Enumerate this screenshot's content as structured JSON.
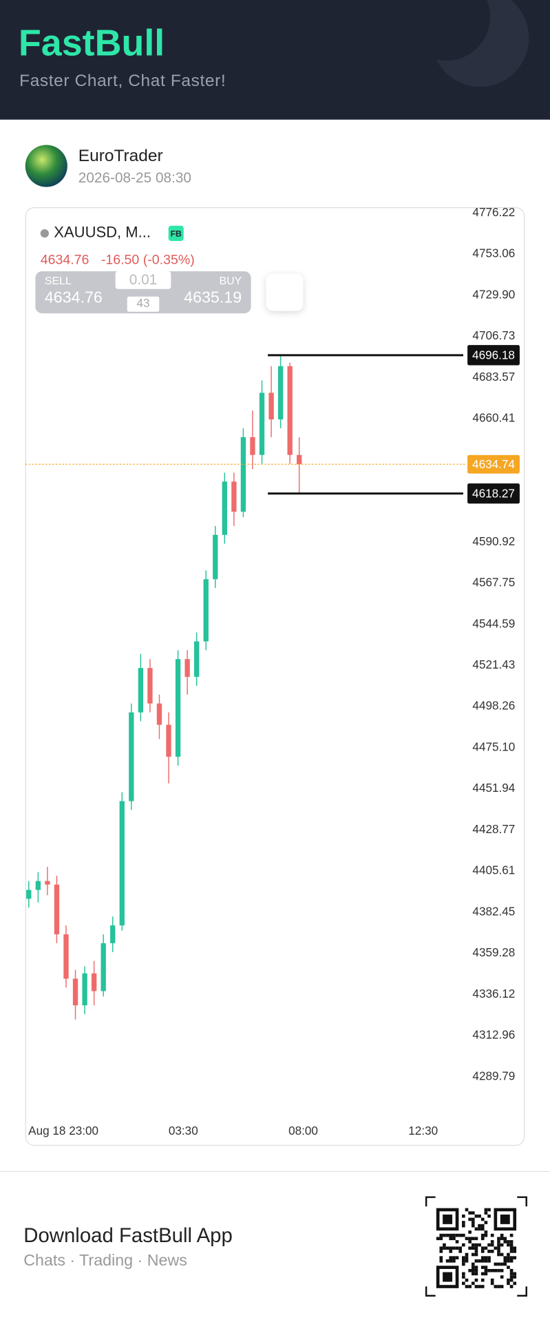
{
  "header": {
    "title": "FastBull",
    "subtitle": "Faster Chart, Chat Faster!"
  },
  "post": {
    "author": "EuroTrader",
    "date": "2026-08-25 08:30"
  },
  "chart_data": {
    "type": "candlestick",
    "symbol": "XAUUSD, M...",
    "badge": "FB",
    "price": 4634.76,
    "change": "-16.50 (-0.35%)",
    "trade": {
      "sell_label": "SELL",
      "sell": 4634.76,
      "buy_label": "BUY",
      "buy": 4635.19,
      "lot": 0.01,
      "spread": 43
    },
    "x": [
      21.7,
      22.05,
      22.4,
      22.75,
      23.1,
      23.45,
      23.8,
      24.15,
      24.5,
      24.85,
      25.2,
      25.55,
      25.9,
      26.25,
      26.6,
      26.95,
      27.3,
      27.65,
      28,
      28.35,
      28.7,
      29.05,
      29.4,
      29.75,
      30.1,
      30.45,
      30.8,
      31.15,
      31.5,
      31.85
    ],
    "open": [
      4390,
      4395,
      4400,
      4398,
      4370,
      4345,
      4330,
      4348,
      4338,
      4365,
      4375,
      4445,
      4495,
      4520,
      4500,
      4488,
      4470,
      4525,
      4515,
      4535,
      4570,
      4595,
      4625,
      4608,
      4650,
      4640,
      4675,
      4660,
      4690,
      4640
    ],
    "high": [
      4400,
      4405,
      4408,
      4403,
      4375,
      4350,
      4352,
      4355,
      4370,
      4380,
      4450,
      4500,
      4528,
      4525,
      4505,
      4495,
      4530,
      4530,
      4540,
      4575,
      4600,
      4630,
      4630,
      4655,
      4665,
      4682,
      4690,
      4696.18,
      4692,
      4650
    ],
    "low": [
      4385,
      4388,
      4392,
      4365,
      4340,
      4322,
      4325,
      4330,
      4335,
      4360,
      4372,
      4440,
      4490,
      4495,
      4480,
      4455,
      4465,
      4505,
      4510,
      4530,
      4565,
      4590,
      4600,
      4605,
      4632,
      4635,
      4650,
      4655,
      4635,
      4618.27
    ],
    "close": [
      4395,
      4400,
      4398,
      4370,
      4345,
      4330,
      4348,
      4338,
      4365,
      4375,
      4445,
      4495,
      4520,
      4500,
      4488,
      4470,
      4525,
      4515,
      4535,
      4570,
      4595,
      4625,
      4608,
      4650,
      4640,
      4675,
      4660,
      4690,
      4640,
      4634.74
    ],
    "up_color": "#26c29a",
    "down_color": "#ef6b6b",
    "xlim": [
      21.6,
      38.1
    ],
    "xticks": [
      {
        "value": 23,
        "label": "Aug 18 23:00"
      },
      {
        "value": 27.5,
        "label": "03:30"
      },
      {
        "value": 32,
        "label": "08:00"
      },
      {
        "value": 36.5,
        "label": "12:30"
      }
    ],
    "ylim": [
      4267.5,
      4779.5
    ],
    "yticks": [
      4776.22,
      4753.06,
      {
        "value": 4729.9,
        "label": "4729.90"
      },
      4706.73,
      4683.57,
      4660.41,
      4590.92,
      4567.75,
      4544.59,
      4521.43,
      4498.26,
      {
        "value": 4475.1,
        "label": "4475.10"
      },
      4451.94,
      4428.77,
      4405.61,
      4382.45,
      4359.28,
      4336.12,
      4312.96,
      4289.79
    ],
    "levels": [
      4696.18,
      4618.27
    ],
    "current": {
      "value": 4634.74,
      "color": "#f5a623"
    }
  },
  "footer": {
    "title": "Download FastBull App",
    "subtitle": "Chats · Trading · News"
  }
}
